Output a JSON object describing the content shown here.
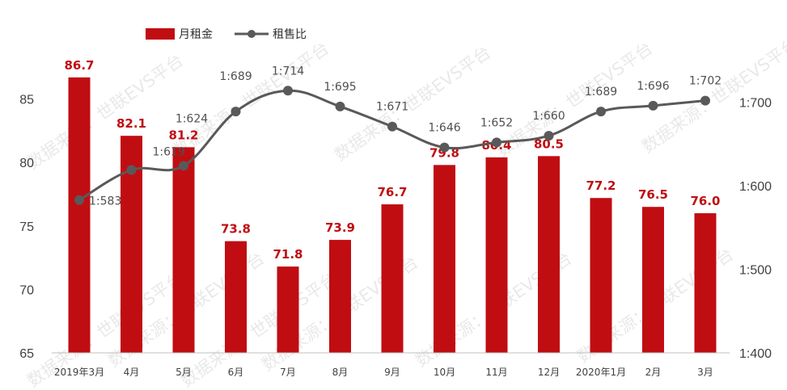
{
  "watermark": "数据来源：世联EVS平台",
  "colors": {
    "bar": "#C00D12",
    "line": "#595959",
    "bar_label": "#C00D12"
  },
  "chart_data": {
    "type": "bar+line",
    "title": "",
    "legend_position": "top-left",
    "grid": false,
    "categories": [
      "2019年3月",
      "4月",
      "5月",
      "6月",
      "7月",
      "8月",
      "9月",
      "10月",
      "11月",
      "12月",
      "2020年1月",
      "2月",
      "3月"
    ],
    "ylim_left": [
      65,
      90
    ],
    "left_ticks": [
      "65",
      "70",
      "75",
      "80",
      "85"
    ],
    "ylim_right": [
      400,
      780
    ],
    "right_ticks": [
      "1:400",
      "1:500",
      "1:600",
      "1:700"
    ],
    "series": [
      {
        "name": "月租金",
        "type": "bar",
        "axis": "left",
        "values": [
          86.7,
          82.1,
          81.2,
          73.8,
          71.8,
          73.9,
          76.7,
          79.8,
          80.4,
          80.5,
          77.2,
          76.5,
          76.0
        ],
        "labels": [
          "86.7",
          "82.1",
          "81.2",
          "73.8",
          "71.8",
          "73.9",
          "76.7",
          "79.8",
          "80.4",
          "80.5",
          "77.2",
          "76.5",
          "76.0"
        ]
      },
      {
        "name": "租售比",
        "type": "line",
        "axis": "right",
        "values": [
          583,
          619,
          624,
          689,
          714,
          695,
          671,
          646,
          652,
          660,
          689,
          696,
          702
        ],
        "labels": [
          "1:583",
          "1:619",
          "1:624",
          "1:689",
          "1:714",
          "1:695",
          "1:671",
          "1:646",
          "1:652",
          "1:660",
          "1:689",
          "1:696",
          "1:702"
        ]
      }
    ]
  }
}
